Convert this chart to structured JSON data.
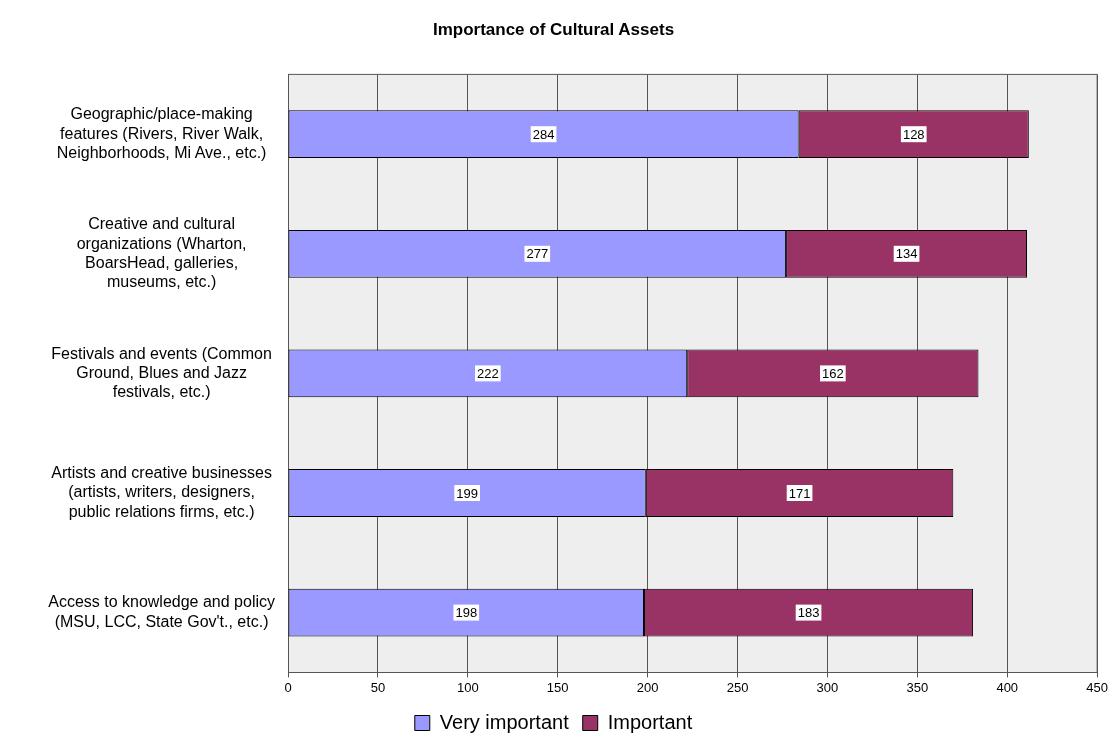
{
  "chart_data": {
    "type": "bar",
    "title": "Importance of Cultural Assets",
    "orientation": "horizontal",
    "stacked": true,
    "categories": [
      "Geographic/place-making features (Rivers, River Walk, Neighborhoods, Mi Ave., etc.)",
      "Creative and cultural organizations (Wharton, BoarsHead, galleries, museums, etc.)",
      "Festivals and events (Common Ground, Blues and Jazz festivals, etc.)",
      "Artists and creative businesses (artists, writers, designers, public relations firms, etc.)",
      "Access to knowledge and policy (MSU, LCC, State Gov't., etc.)"
    ],
    "series": [
      {
        "name": "Very important",
        "color": "#9999ff",
        "values": [
          284,
          277,
          222,
          199,
          198
        ]
      },
      {
        "name": "Important",
        "color": "#993366",
        "values": [
          128,
          134,
          162,
          171,
          183
        ]
      }
    ],
    "xlim": [
      0,
      450
    ],
    "xticks": [
      0,
      50,
      100,
      150,
      200,
      250,
      300,
      350,
      400,
      450
    ],
    "grid": "x",
    "legend": "bottom",
    "data_labels": true
  }
}
